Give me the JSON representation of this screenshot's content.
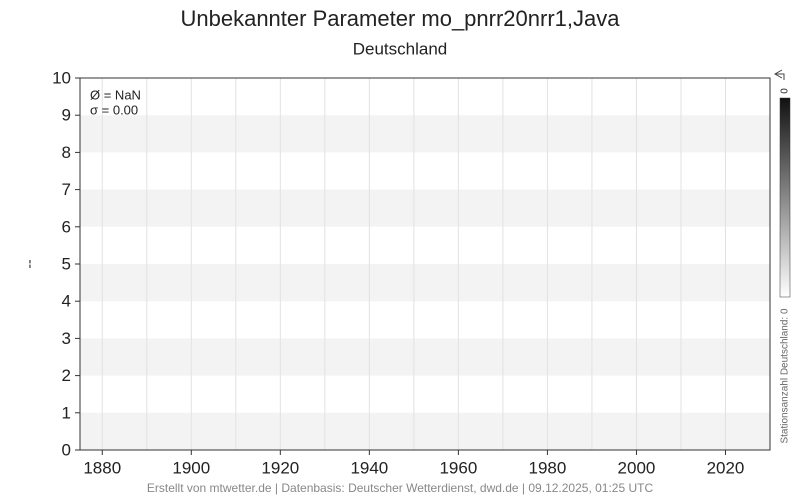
{
  "chart_data": {
    "type": "line",
    "title": "Unbekannter Parameter mo_pnrr20nrr1,Java",
    "subtitle": "Deutschland",
    "y_label": "--",
    "annotations": [
      "Ø = NaN",
      "σ = 0.00"
    ],
    "series": [],
    "xlim": [
      1875,
      2030
    ],
    "xticks": [
      1880,
      1900,
      1920,
      1940,
      1960,
      1980,
      2000,
      2020
    ],
    "x_minor_ticks": [
      1890,
      1910,
      1930,
      1950,
      1970,
      1990,
      2010,
      2030
    ],
    "ylim": [
      0,
      10
    ],
    "yticks": [
      0,
      1,
      2,
      3,
      4,
      5,
      6,
      7,
      8,
      9,
      10
    ],
    "grid": true,
    "colorbar": {
      "label": "Stationsanzahl Deutschland: 0",
      "ticks": [
        0
      ],
      "colors": [
        "#111111",
        "#ffffff"
      ]
    },
    "footer": "Erstellt von mtwetter.de | Datenbasis: Deutscher Wetterdienst, dwd.de | 09.12.2025, 01:25 UTC"
  }
}
